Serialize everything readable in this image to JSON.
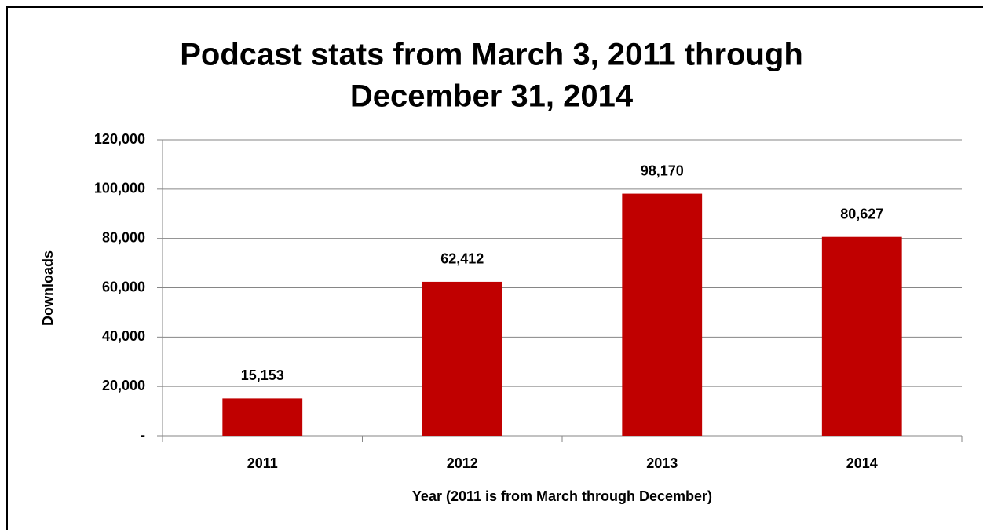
{
  "chart_data": {
    "type": "bar",
    "title": [
      "Podcast stats from March 3, 2011 through",
      "December 31, 2014"
    ],
    "x_label": "Year (2011 is from March through December)",
    "y_label": "Downloads",
    "categories": [
      "2011",
      "2012",
      "2013",
      "2014"
    ],
    "values": [
      15153,
      62412,
      98170,
      80627
    ],
    "value_labels": [
      "15,153",
      "62,412",
      "98,170",
      "80,627"
    ],
    "color": "#c00000",
    "ylim": [
      0,
      120000
    ],
    "yticks": [
      {
        "value": 0,
        "label": "-"
      },
      {
        "value": 20000,
        "label": "20,000"
      },
      {
        "value": 40000,
        "label": "40,000"
      },
      {
        "value": 60000,
        "label": "60,000"
      },
      {
        "value": 80000,
        "label": "80,000"
      },
      {
        "value": 100000,
        "label": "100,000"
      },
      {
        "value": 120000,
        "label": "120,000"
      }
    ],
    "grid": true
  }
}
